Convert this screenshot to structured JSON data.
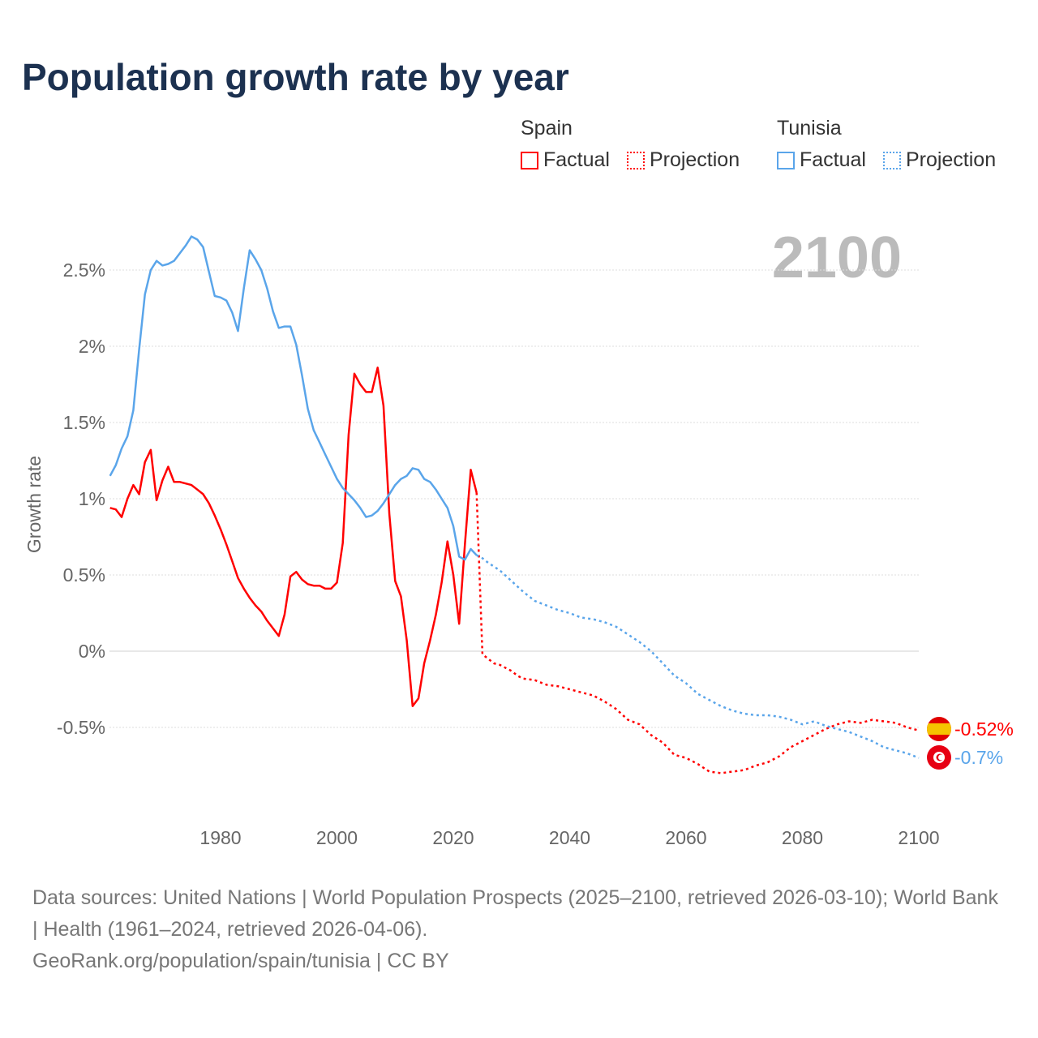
{
  "title": "Population growth rate by year",
  "legend": {
    "groups": [
      {
        "name": "Spain",
        "color": "#ff0000",
        "items": [
          "Factual",
          "Projection"
        ]
      },
      {
        "name": "Tunisia",
        "color": "#5aa5ea",
        "items": [
          "Factual",
          "Projection"
        ]
      }
    ]
  },
  "year_label": "2100",
  "footer": {
    "sources": "Data sources: United Nations | World Population Prospects (2025–2100, retrieved 2026-03-10); World Bank | Health (1961–2024, retrieved 2026-04-06).",
    "credit": "GeoRank.org/population/spain/tunisia | CC BY"
  },
  "chart_data": {
    "type": "line",
    "title": "Population growth rate by year",
    "xlabel": "",
    "ylabel": "Growth rate",
    "xlim": [
      1961,
      2100
    ],
    "ylim": [
      -1.0,
      2.8
    ],
    "x_ticks": [
      1980,
      2000,
      2020,
      2040,
      2060,
      2080,
      2100
    ],
    "x_tick_labels": [
      "1980",
      "2000",
      "2020",
      "2040",
      "2060",
      "2080",
      "2100"
    ],
    "y_ticks": [
      -0.5,
      0,
      0.5,
      1,
      1.5,
      2,
      2.5
    ],
    "y_tick_labels": [
      "-0.5%",
      "0%",
      "0.5%",
      "1%",
      "1.5%",
      "2%",
      "2.5%"
    ],
    "grid": true,
    "series": [
      {
        "name": "Spain",
        "kind": "Factual",
        "color": "#ff0000",
        "style": "solid",
        "x": [
          1961,
          1962,
          1963,
          1964,
          1965,
          1966,
          1967,
          1968,
          1969,
          1970,
          1971,
          1972,
          1973,
          1974,
          1975,
          1976,
          1977,
          1978,
          1979,
          1980,
          1981,
          1982,
          1983,
          1984,
          1985,
          1986,
          1987,
          1988,
          1989,
          1990,
          1991,
          1992,
          1993,
          1994,
          1995,
          1996,
          1997,
          1998,
          1999,
          2000,
          2001,
          2002,
          2003,
          2004,
          2005,
          2006,
          2007,
          2008,
          2009,
          2010,
          2011,
          2012,
          2013,
          2014,
          2015,
          2016,
          2017,
          2018,
          2019,
          2020,
          2021,
          2022,
          2023,
          2024
        ],
        "y": [
          0.94,
          0.93,
          0.88,
          1.0,
          1.09,
          1.03,
          1.24,
          1.32,
          0.99,
          1.12,
          1.21,
          1.11,
          1.11,
          1.1,
          1.09,
          1.06,
          1.03,
          0.97,
          0.89,
          0.8,
          0.7,
          0.59,
          0.48,
          0.41,
          0.35,
          0.3,
          0.26,
          0.2,
          0.15,
          0.1,
          0.24,
          0.49,
          0.52,
          0.47,
          0.44,
          0.43,
          0.43,
          0.41,
          0.41,
          0.45,
          0.71,
          1.42,
          1.82,
          1.75,
          1.7,
          1.7,
          1.86,
          1.61,
          0.9,
          0.46,
          0.36,
          0.07,
          -0.36,
          -0.31,
          -0.08,
          0.07,
          0.24,
          0.45,
          0.72,
          0.5,
          0.18,
          0.7,
          1.19,
          1.04
        ]
      },
      {
        "name": "Spain",
        "kind": "Projection",
        "color": "#ff0000",
        "style": "dotted",
        "x": [
          2024,
          2025,
          2026,
          2027,
          2028,
          2029,
          2030,
          2031,
          2032,
          2034,
          2036,
          2038,
          2040,
          2042,
          2044,
          2046,
          2048,
          2050,
          2052,
          2054,
          2056,
          2058,
          2060,
          2062,
          2064,
          2066,
          2068,
          2070,
          2072,
          2074,
          2076,
          2078,
          2080,
          2082,
          2084,
          2086,
          2088,
          2090,
          2092,
          2094,
          2096,
          2098,
          2100
        ],
        "y": [
          1.04,
          -0.02,
          -0.05,
          -0.08,
          -0.09,
          -0.11,
          -0.13,
          -0.16,
          -0.18,
          -0.19,
          -0.22,
          -0.23,
          -0.25,
          -0.27,
          -0.29,
          -0.33,
          -0.38,
          -0.45,
          -0.48,
          -0.55,
          -0.6,
          -0.68,
          -0.7,
          -0.74,
          -0.79,
          -0.8,
          -0.79,
          -0.78,
          -0.75,
          -0.73,
          -0.69,
          -0.63,
          -0.59,
          -0.55,
          -0.51,
          -0.48,
          -0.46,
          -0.47,
          -0.45,
          -0.46,
          -0.47,
          -0.5,
          -0.52
        ]
      },
      {
        "name": "Tunisia",
        "kind": "Factual",
        "color": "#5aa5ea",
        "style": "solid",
        "x": [
          1961,
          1962,
          1963,
          1964,
          1965,
          1966,
          1967,
          1968,
          1969,
          1970,
          1971,
          1972,
          1973,
          1974,
          1975,
          1976,
          1977,
          1978,
          1979,
          1980,
          1981,
          1982,
          1983,
          1984,
          1985,
          1986,
          1987,
          1988,
          1989,
          1990,
          1991,
          1992,
          1993,
          1994,
          1995,
          1996,
          1997,
          1998,
          1999,
          2000,
          2001,
          2002,
          2003,
          2004,
          2005,
          2006,
          2007,
          2008,
          2009,
          2010,
          2011,
          2012,
          2013,
          2014,
          2015,
          2016,
          2017,
          2018,
          2019,
          2020,
          2021,
          2022,
          2023,
          2024
        ],
        "y": [
          1.15,
          1.22,
          1.33,
          1.41,
          1.58,
          1.98,
          2.34,
          2.5,
          2.56,
          2.53,
          2.54,
          2.56,
          2.61,
          2.66,
          2.72,
          2.7,
          2.65,
          2.49,
          2.33,
          2.32,
          2.3,
          2.22,
          2.1,
          2.38,
          2.63,
          2.57,
          2.5,
          2.38,
          2.23,
          2.12,
          2.13,
          2.13,
          2.01,
          1.81,
          1.59,
          1.45,
          1.37,
          1.29,
          1.21,
          1.13,
          1.07,
          1.03,
          0.99,
          0.94,
          0.88,
          0.89,
          0.92,
          0.97,
          1.03,
          1.09,
          1.13,
          1.15,
          1.2,
          1.19,
          1.13,
          1.11,
          1.06,
          1.0,
          0.94,
          0.82,
          0.62,
          0.6,
          0.67,
          0.63
        ]
      },
      {
        "name": "Tunisia",
        "kind": "Projection",
        "color": "#5aa5ea",
        "style": "dotted",
        "x": [
          2024,
          2025,
          2026,
          2028,
          2030,
          2032,
          2034,
          2036,
          2038,
          2040,
          2042,
          2044,
          2046,
          2048,
          2050,
          2052,
          2054,
          2056,
          2058,
          2060,
          2062,
          2064,
          2066,
          2068,
          2070,
          2072,
          2074,
          2076,
          2078,
          2080,
          2082,
          2084,
          2086,
          2088,
          2090,
          2092,
          2094,
          2096,
          2098,
          2100
        ],
        "y": [
          0.63,
          0.61,
          0.58,
          0.53,
          0.46,
          0.39,
          0.33,
          0.3,
          0.27,
          0.25,
          0.22,
          0.21,
          0.19,
          0.16,
          0.11,
          0.06,
          0.0,
          -0.08,
          -0.16,
          -0.21,
          -0.28,
          -0.32,
          -0.36,
          -0.39,
          -0.41,
          -0.42,
          -0.42,
          -0.43,
          -0.45,
          -0.48,
          -0.46,
          -0.49,
          -0.51,
          -0.53,
          -0.56,
          -0.59,
          -0.63,
          -0.65,
          -0.67,
          -0.7
        ]
      }
    ],
    "end_labels": [
      {
        "country": "Spain",
        "value": "-0.52%",
        "color": "#ff0000"
      },
      {
        "country": "Tunisia",
        "value": "-0.7%",
        "color": "#5aa5ea"
      }
    ]
  }
}
